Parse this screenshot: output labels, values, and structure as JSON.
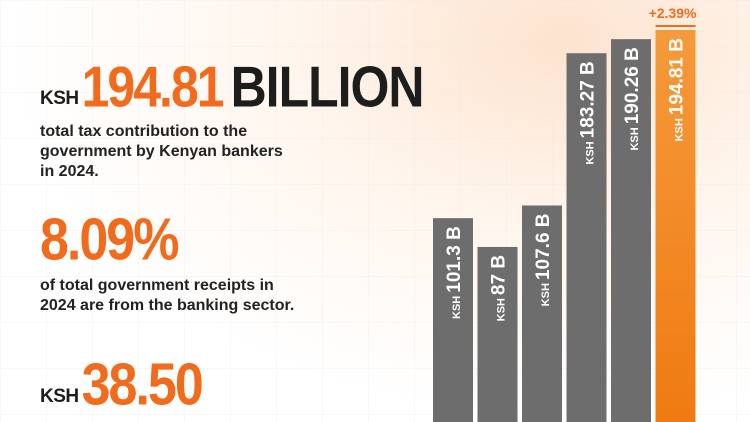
{
  "stats": [
    {
      "prefix": "KSH",
      "value": "194.81",
      "unit": "BILLION",
      "description": "total tax contribution to the government by Kenyan bankers in 2024."
    },
    {
      "value": "8.09%",
      "description": "of total government receipts in 2024 are from the banking sector."
    },
    {
      "prefix": "KSH",
      "value": "38.50",
      "description": ""
    }
  ],
  "colors": {
    "accent": "#f26a1b",
    "bar_gray": "#6d6d6d",
    "text_dark": "#1d1d1d"
  },
  "chart_data": {
    "type": "bar",
    "values": [
      101.3,
      87,
      107.6,
      183.27,
      190.26,
      194.81
    ],
    "value_labels": [
      "KSH 101.3 B",
      "KSH 87 B",
      "KSH 107.6 B",
      "KSH 183.27 B",
      "KSH 190.26 B",
      "KSH 194.81 B"
    ],
    "highlight_index": 5,
    "annotation": "+2.39%",
    "ylim": [
      0,
      200
    ],
    "grid": false
  }
}
